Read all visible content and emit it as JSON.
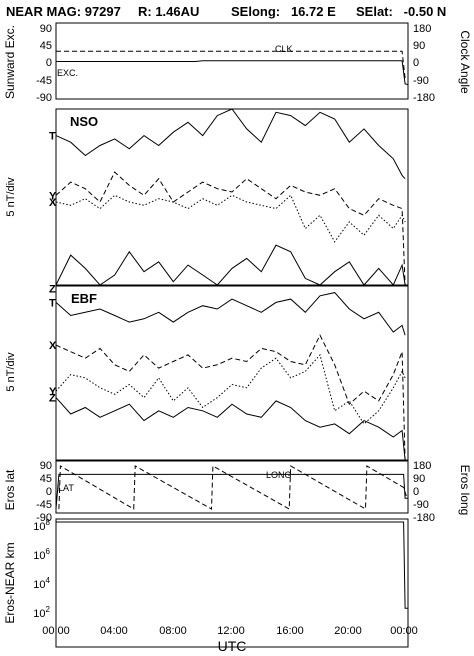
{
  "header": {
    "title": "NEAR MAG: 97297",
    "distance": "R: 1.46AU",
    "selong": "SElong:   16.72 E",
    "selat": "SElat:   -0.50 N"
  },
  "xaxis": {
    "label": "UTC",
    "ticks": [
      "00:00",
      "04:00",
      "08:00",
      "12:00",
      "16:00",
      "20:00",
      "00:00"
    ]
  },
  "chart_data": [
    {
      "type": "line",
      "panel": "sunward",
      "ylabel_left": "Sunward Exc.",
      "ylabel_right": "Clock Angle",
      "yticks_left": [
        "90",
        "45",
        "0",
        "-45",
        "-90"
      ],
      "yticks_right": [
        "180",
        "90",
        "0",
        "-90",
        "-180"
      ],
      "ylim": [
        -90,
        90
      ],
      "xlim": [
        0,
        24
      ],
      "annotations": [
        "CLK",
        "EXC."
      ],
      "series": [
        {
          "name": "CLK",
          "style": "dashed",
          "x": [
            0,
            23.6,
            23.8,
            24.0
          ],
          "y": [
            55,
            55,
            -90,
            -90
          ]
        },
        {
          "name": "EXC.",
          "style": "solid",
          "x": [
            0,
            9.5,
            10,
            23.6,
            23.8,
            24.0
          ],
          "y": [
            0,
            0,
            2,
            2,
            -60,
            -62
          ]
        }
      ]
    },
    {
      "type": "line",
      "panel": "NSO",
      "label": "NSO",
      "ylabel": "5 nT/div",
      "xlim": [
        0,
        24
      ],
      "series": [
        {
          "name": "T",
          "style": "solid",
          "x": [
            0,
            1,
            2,
            3,
            4,
            5,
            6,
            7,
            8,
            9,
            10,
            11,
            12,
            13,
            14,
            15,
            16,
            17,
            18,
            19,
            20,
            21,
            22,
            23,
            23.6,
            23.8
          ],
          "y": [
            4.2,
            4.0,
            3.6,
            3.9,
            4.1,
            3.8,
            4.2,
            3.9,
            4.3,
            4.6,
            4.2,
            4.8,
            5.0,
            4.4,
            4.0,
            4.9,
            4.8,
            4.5,
            4.9,
            4.7,
            4.0,
            4.4,
            3.9,
            3.5,
            3.0,
            2.9
          ]
        },
        {
          "name": "Y",
          "style": "dashed",
          "x": [
            0,
            1,
            2,
            3,
            4,
            5,
            6,
            7,
            8,
            9,
            10,
            11,
            12,
            13,
            14,
            15,
            16,
            17,
            18,
            19,
            20,
            21,
            22,
            23,
            23.6,
            23.8
          ],
          "y": [
            2.4,
            2.8,
            2.6,
            2.2,
            3.1,
            2.7,
            2.4,
            2.9,
            2.2,
            2.5,
            2.8,
            2.6,
            2.5,
            2.9,
            2.6,
            2.3,
            2.7,
            2.5,
            2.4,
            2.6,
            2.0,
            1.8,
            2.3,
            2.1,
            2.0,
            -4.0
          ]
        },
        {
          "name": "X",
          "style": "dotted",
          "x": [
            0,
            1,
            2,
            3,
            4,
            5,
            6,
            7,
            8,
            9,
            10,
            11,
            12,
            13,
            14,
            15,
            16,
            17,
            18,
            19,
            20,
            21,
            22,
            23,
            23.6,
            23.8
          ],
          "y": [
            2.2,
            2.1,
            2.3,
            2.0,
            2.4,
            2.2,
            2.1,
            2.3,
            2.2,
            2.0,
            2.3,
            2.1,
            2.4,
            2.2,
            2.1,
            2.0,
            2.4,
            1.4,
            1.8,
            1.0,
            1.6,
            1.2,
            1.8,
            1.4,
            1.8,
            1.6
          ]
        },
        {
          "name": "Z",
          "style": "solid",
          "x": [
            0,
            1,
            2,
            3,
            4,
            5,
            6,
            7,
            8,
            9,
            10,
            11,
            12,
            13,
            14,
            15,
            16,
            17,
            18,
            19,
            20,
            21,
            22,
            23,
            23.6,
            23.8
          ],
          "y": [
            -0.4,
            0.6,
            0.2,
            -0.9,
            0.0,
            0.7,
            0.1,
            0.4,
            -0.2,
            0.3,
            0.0,
            -0.4,
            0.2,
            0.5,
            0.1,
            0.9,
            0.7,
            -0.1,
            -0.8,
            0.1,
            0.4,
            -0.3,
            0.2,
            -0.6,
            0.3,
            -5.0
          ]
        }
      ]
    },
    {
      "type": "line",
      "panel": "EBF",
      "label": "EBF",
      "ylabel": "5 nT/div",
      "xlim": [
        0,
        24
      ],
      "series": [
        {
          "name": "T",
          "style": "solid",
          "x": [
            0,
            1,
            2,
            3,
            4,
            5,
            6,
            7,
            8,
            9,
            10,
            11,
            12,
            13,
            14,
            15,
            16,
            17,
            18,
            19,
            20,
            21,
            22,
            23,
            23.6,
            23.8
          ],
          "y": [
            4.5,
            4.1,
            4.2,
            4.3,
            4.1,
            3.9,
            4.0,
            4.2,
            3.9,
            4.2,
            4.4,
            4.3,
            4.6,
            4.4,
            4.2,
            4.5,
            4.6,
            4.2,
            4.7,
            4.8,
            4.3,
            4.0,
            4.2,
            3.6,
            3.8,
            3.5
          ]
        },
        {
          "name": "X",
          "style": "dashed",
          "x": [
            0,
            1,
            2,
            3,
            4,
            5,
            6,
            7,
            8,
            9,
            10,
            11,
            12,
            13,
            14,
            15,
            16,
            17,
            18,
            19,
            20,
            21,
            22,
            23,
            23.6,
            23.8
          ],
          "y": [
            3.2,
            3.0,
            2.8,
            3.1,
            2.6,
            2.4,
            2.9,
            2.5,
            2.7,
            2.9,
            2.5,
            2.6,
            2.8,
            2.7,
            3.1,
            3.0,
            2.7,
            2.6,
            3.5,
            2.6,
            1.4,
            1.8,
            1.5,
            2.3,
            3.0,
            -1.2
          ]
        },
        {
          "name": "Y",
          "style": "dotted",
          "x": [
            0,
            1,
            2,
            3,
            4,
            5,
            6,
            7,
            8,
            9,
            10,
            11,
            12,
            13,
            14,
            15,
            16,
            17,
            18,
            19,
            20,
            21,
            22,
            23,
            23.6,
            23.8
          ],
          "y": [
            1.8,
            2.3,
            2.2,
            1.9,
            1.7,
            2.0,
            1.6,
            2.2,
            1.5,
            1.9,
            1.3,
            1.6,
            2.0,
            1.9,
            2.5,
            2.8,
            2.2,
            2.4,
            2.9,
            1.2,
            1.5,
            0.8,
            1.2,
            1.9,
            2.4,
            2.2
          ]
        },
        {
          "name": "Z",
          "style": "solid",
          "x": [
            0,
            1,
            2,
            3,
            4,
            5,
            6,
            7,
            8,
            9,
            10,
            11,
            12,
            13,
            14,
            15,
            16,
            17,
            18,
            19,
            20,
            21,
            22,
            23,
            23.6,
            23.8
          ],
          "y": [
            1.6,
            1.1,
            1.3,
            1.0,
            1.2,
            1.4,
            0.9,
            1.2,
            1.0,
            1.3,
            1.2,
            1.0,
            1.4,
            1.1,
            1.0,
            1.5,
            1.3,
            0.9,
            0.7,
            0.8,
            0.5,
            0.9,
            0.7,
            0.4,
            0.6,
            -3.5
          ]
        }
      ]
    },
    {
      "type": "line",
      "panel": "eros",
      "ylabel_left": "Eros lat",
      "ylabel_right": "Eros long",
      "yticks_left": [
        "90",
        "45",
        "0",
        "-45",
        "-90"
      ],
      "yticks_right": [
        "180",
        "90",
        "0",
        "-90",
        "-180"
      ],
      "ylim": [
        -90,
        90
      ],
      "xlim": [
        0,
        24
      ],
      "annotations": [
        "LAT",
        "LONG"
      ],
      "series": [
        {
          "name": "LAT",
          "style": "solid",
          "x": [
            0,
            0.2,
            23.7,
            23.8,
            24.0
          ],
          "y": [
            -90,
            55,
            55,
            -45,
            -45
          ]
        },
        {
          "name": "LONG",
          "style": "dashed",
          "x": [
            0.2,
            0.3,
            5.3,
            5.4,
            10.6,
            10.7,
            15.9,
            16.0,
            21.1,
            21.2,
            23.7,
            23.9
          ],
          "y": [
            -180,
            180,
            -180,
            180,
            -180,
            180,
            -180,
            180,
            -180,
            180,
            0,
            -75
          ]
        }
      ]
    },
    {
      "type": "line",
      "panel": "distance",
      "ylabel": "Eros-NEAR km",
      "yticks": [
        "10^8",
        "10^6",
        "10^4",
        "10^2"
      ],
      "yscale": "log",
      "ylim": [
        1,
        100000000
      ],
      "xlim": [
        0,
        24
      ],
      "series": [
        {
          "name": "Eros-NEAR",
          "style": "solid",
          "x": [
            0,
            23.7,
            23.8,
            24.0
          ],
          "y": [
            100000000,
            100000000,
            200,
            200
          ]
        }
      ]
    }
  ]
}
